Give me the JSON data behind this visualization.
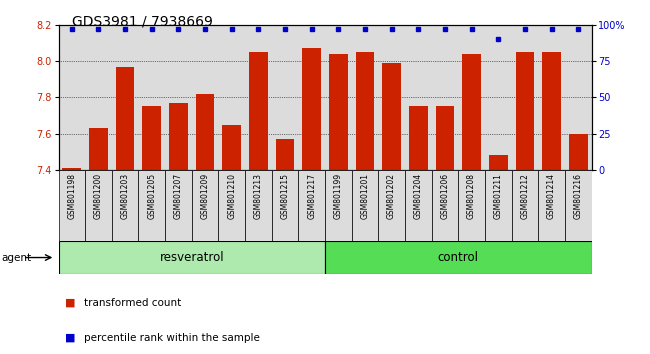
{
  "title": "GDS3981 / 7938669",
  "samples": [
    "GSM801198",
    "GSM801200",
    "GSM801203",
    "GSM801205",
    "GSM801207",
    "GSM801209",
    "GSM801210",
    "GSM801213",
    "GSM801215",
    "GSM801217",
    "GSM801199",
    "GSM801201",
    "GSM801202",
    "GSM801204",
    "GSM801206",
    "GSM801208",
    "GSM801211",
    "GSM801212",
    "GSM801214",
    "GSM801216"
  ],
  "red_values": [
    7.41,
    7.63,
    7.97,
    7.75,
    7.77,
    7.82,
    7.65,
    8.05,
    7.57,
    8.07,
    8.04,
    8.05,
    7.99,
    7.75,
    7.75,
    8.04,
    7.48,
    8.05,
    8.05,
    7.6
  ],
  "blue_values": [
    97,
    97,
    97,
    97,
    97,
    97,
    97,
    97,
    97,
    97,
    97,
    97,
    97,
    97,
    97,
    97,
    90,
    97,
    97,
    97
  ],
  "groups": [
    {
      "label": "resveratrol",
      "start": 0,
      "end": 10,
      "color": "#aeeaae"
    },
    {
      "label": "control",
      "start": 10,
      "end": 20,
      "color": "#55dd55"
    }
  ],
  "agent_label": "agent",
  "ylim_left": [
    7.4,
    8.2
  ],
  "ylim_right": [
    0,
    100
  ],
  "yticks_left": [
    7.4,
    7.6,
    7.8,
    8.0,
    8.2
  ],
  "yticks_right": [
    0,
    25,
    50,
    75,
    100
  ],
  "yticklabels_right": [
    "0",
    "25",
    "50",
    "75",
    "100%"
  ],
  "grid_values": [
    7.6,
    7.8,
    8.0
  ],
  "bar_color": "#CC2200",
  "dot_color": "#0000CC",
  "bg_color": "#DCDCDC",
  "legend_red": "transformed count",
  "legend_blue": "percentile rank within the sample",
  "title_fontsize": 10,
  "tick_fontsize": 7,
  "label_fontsize": 8.5
}
